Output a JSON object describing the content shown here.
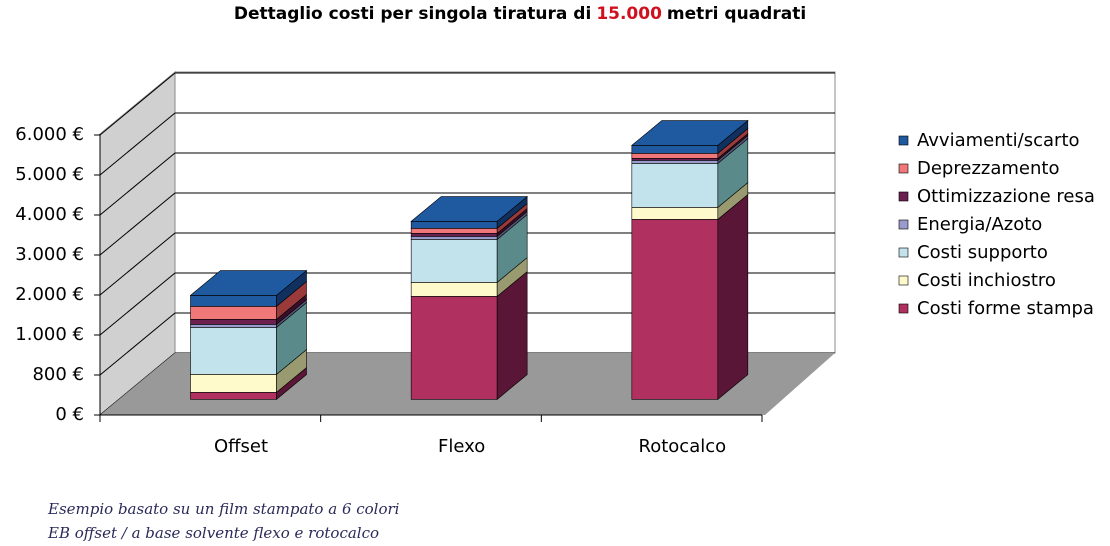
{
  "chart_data": {
    "type": "bar3d_stacked",
    "title": "Dettaglio costi per singola tiratura di",
    "title_highlight": "15.000",
    "title_end": "metri quadrati",
    "title_highlight_color": "#d0101e",
    "categories": [
      "Offset",
      "Flexo",
      "Rotocalco"
    ],
    "series": [
      {
        "name": "Costi forme stampa",
        "color": "#b03060",
        "side": "#5a1636",
        "values": [
          140,
          1575,
          3500
        ]
      },
      {
        "name": "Costi inchiostro",
        "color": "#fffacc",
        "side": "#9a9a70",
        "values": [
          360,
          350,
          300
        ]
      },
      {
        "name": "Costi supporto",
        "color": "#c2e2ec",
        "side": "#5a8a8a",
        "values": [
          460,
          1075,
          1100
        ]
      },
      {
        "name": "Energia/Azoto",
        "color": "#9a9acc",
        "side": "#55557a",
        "values": [
          15,
          75,
          75
        ]
      },
      {
        "name": "Ottimizzazione resa",
        "color": "#6b2050",
        "side": "#3a0f2a",
        "values": [
          25,
          75,
          50
        ]
      },
      {
        "name": "Deprezzamento",
        "color": "#f07878",
        "side": "#9a3a3a",
        "values": [
          325,
          125,
          125
        ]
      },
      {
        "name": "Avviamenti/scarto",
        "color": "#1f5aa0",
        "side": "#103060",
        "values": [
          275,
          175,
          200
        ]
      }
    ],
    "ylim": [
      0,
      6000
    ],
    "yticks": [
      {
        "value": 0,
        "label": "0 €"
      },
      {
        "value": 800,
        "label": "800 €"
      },
      {
        "value": 1000,
        "label": "1.000 €"
      },
      {
        "value": 2000,
        "label": "2.000 €"
      },
      {
        "value": 3000,
        "label": "3.000 €"
      },
      {
        "value": 4000,
        "label": "4.000 €"
      },
      {
        "value": 5000,
        "label": "5.000 €"
      },
      {
        "value": 6000,
        "label": "6.000 €"
      }
    ],
    "grid": true,
    "legend": "right",
    "notes": [
      "Esempio basato su un film stampato a 6 colori",
      "EB offset / a base solvente flexo e rotocalco"
    ]
  }
}
